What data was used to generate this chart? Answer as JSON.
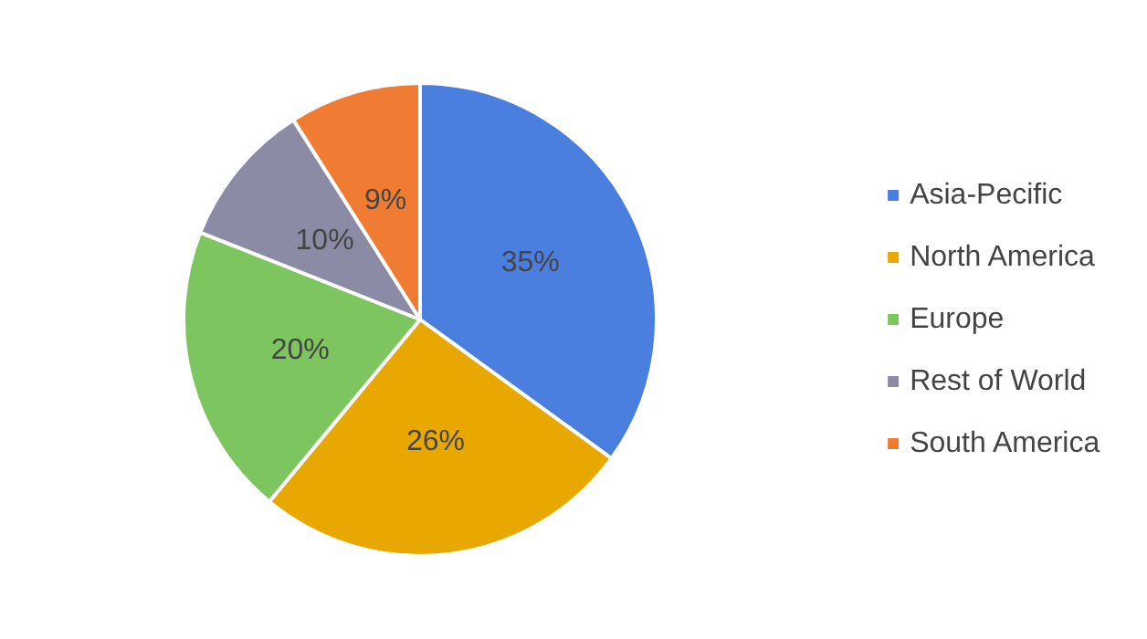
{
  "chart_data": {
    "type": "pie",
    "categories": [
      "Asia-Pecific",
      "North America",
      "Europe",
      "Rest of World",
      "South America"
    ],
    "values": [
      35,
      26,
      20,
      10,
      9
    ],
    "value_labels": [
      "35%",
      "26%",
      "20%",
      "10%",
      "9%"
    ],
    "colors": [
      "#4a7fe0",
      "#e8a800",
      "#7dc55e",
      "#8b8ba5",
      "#f07b33"
    ],
    "legend": "right"
  }
}
